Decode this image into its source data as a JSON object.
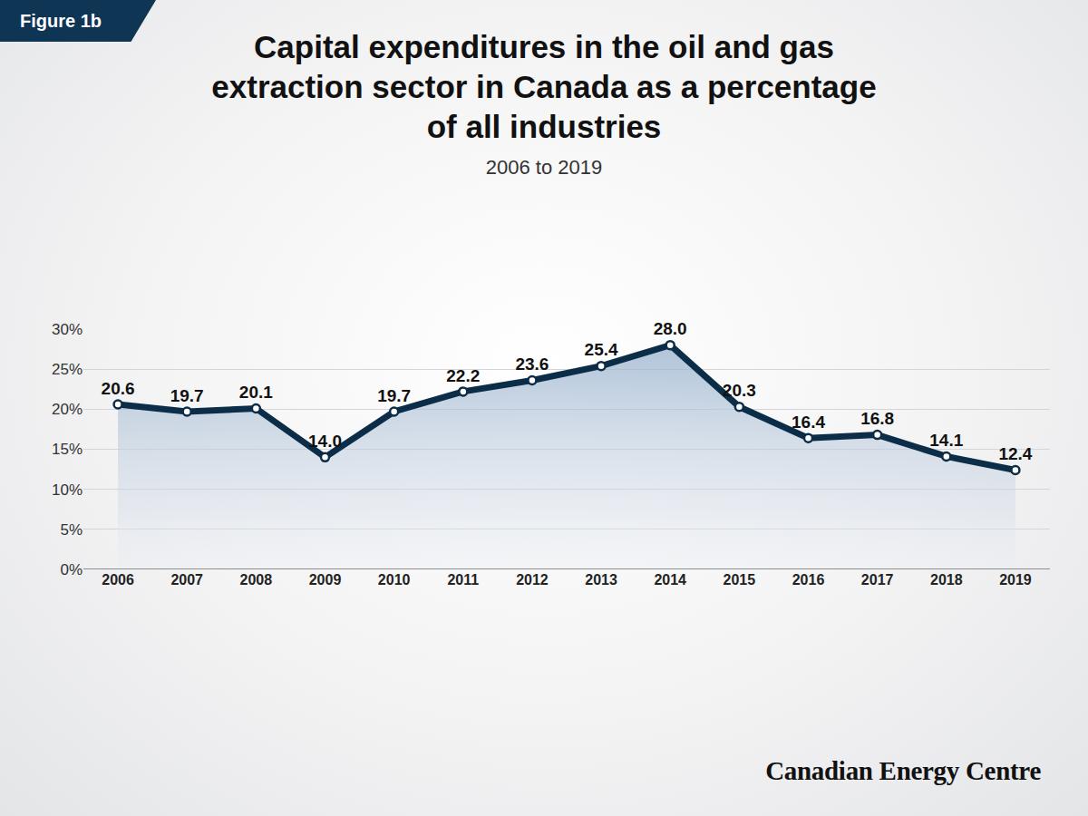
{
  "chart_data": {
    "type": "line",
    "title": "Capital expenditures in the oil and gas extraction sector in Canada as a percentage of all industries",
    "subtitle": "2006 to 2019",
    "annotations": [
      "Figure 1b",
      "Canadian Energy Centre"
    ],
    "categories": [
      "2006",
      "2007",
      "2008",
      "2009",
      "2010",
      "2011",
      "2012",
      "2013",
      "2014",
      "2015",
      "2016",
      "2017",
      "2018",
      "2019"
    ],
    "values": [
      20.6,
      19.7,
      20.1,
      14.0,
      19.7,
      22.2,
      23.6,
      25.4,
      28.0,
      20.3,
      16.4,
      16.8,
      14.1,
      12.4
    ],
    "value_labels": [
      "20.6",
      "19.7",
      "20.1",
      "14.0",
      "19.7",
      "22.2",
      "23.6",
      "25.4",
      "28.0",
      "20.3",
      "16.4",
      "16.8",
      "14.1",
      "12.4"
    ],
    "color": "#0c2d48",
    "marker": "circle",
    "ylim": [
      0,
      30
    ],
    "yticks": [
      {
        "value": 0,
        "label": "0%"
      },
      {
        "value": 5,
        "label": "5%"
      },
      {
        "value": 10,
        "label": "10%"
      },
      {
        "value": 15,
        "label": "15%"
      },
      {
        "value": 20,
        "label": "20%"
      },
      {
        "value": 25,
        "label": "25%"
      },
      {
        "value": 30,
        "label": "30%"
      }
    ],
    "grid": true,
    "data_labels": true
  }
}
